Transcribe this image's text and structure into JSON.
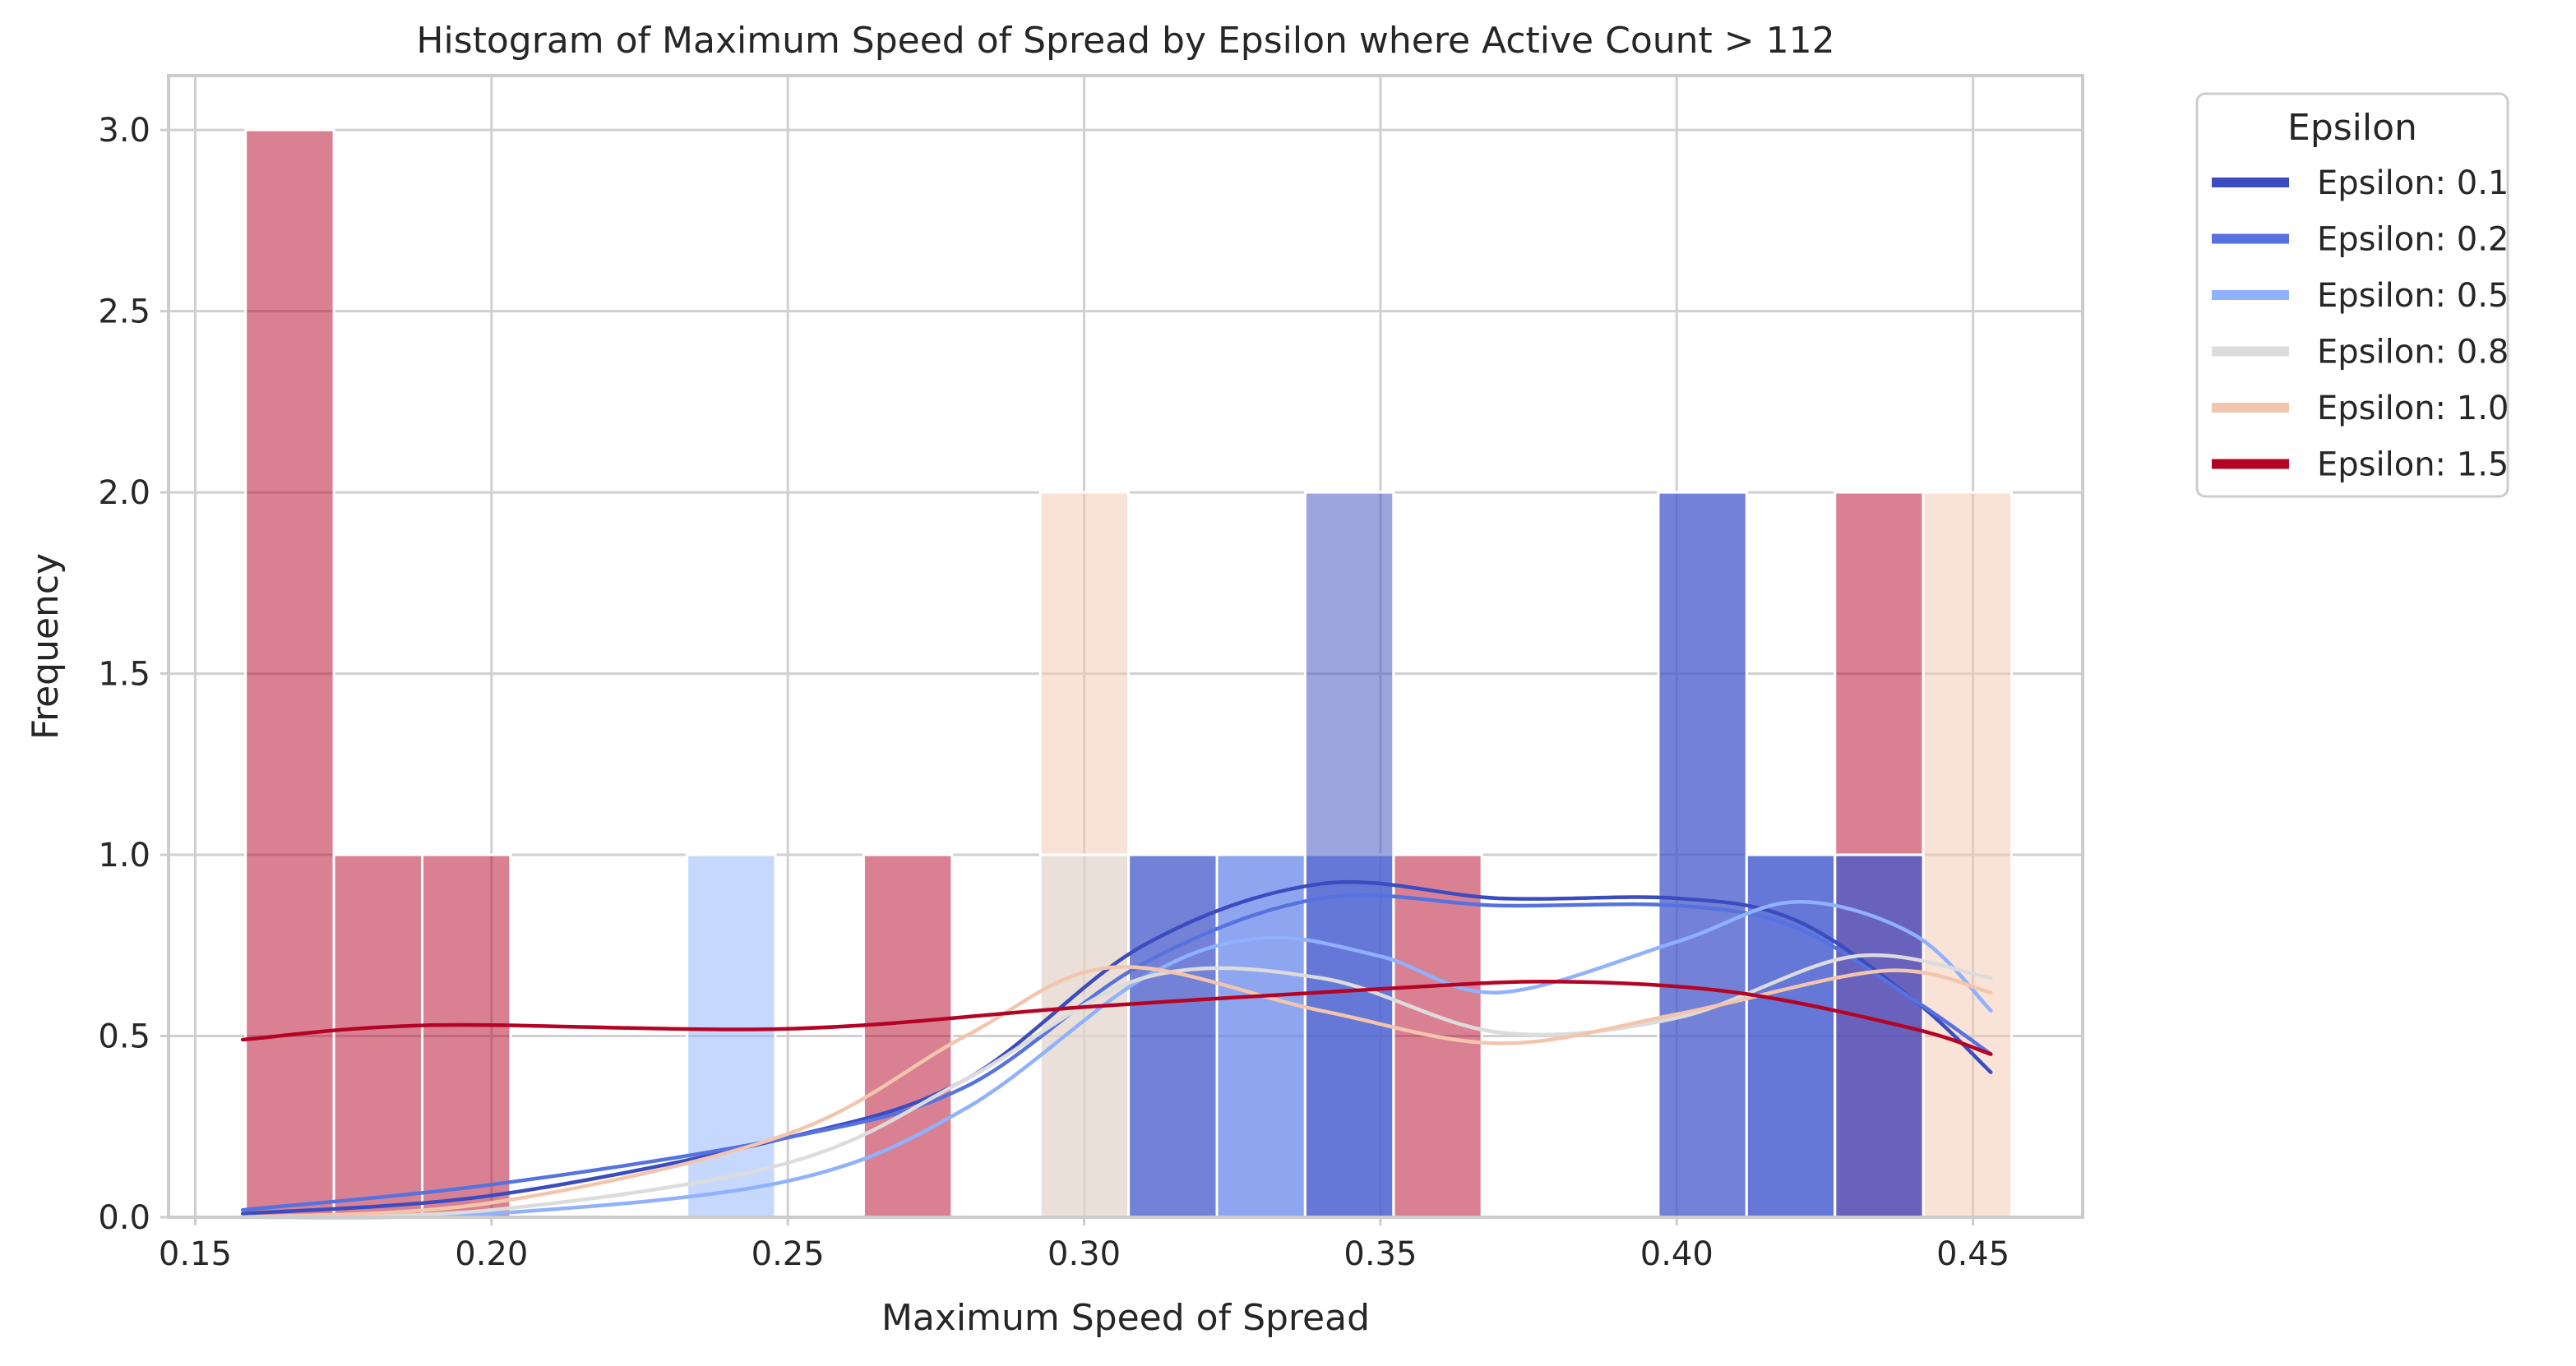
{
  "chart_data": {
    "type": "bar",
    "title": "Histogram of Maximum Speed of Spread by Epsilon where Active Count > 112",
    "xlabel": "Maximum Speed of Spread",
    "ylabel": "Frequency",
    "xlim": [
      0.1455,
      0.4685
    ],
    "ylim": [
      0,
      3.15
    ],
    "xticks": [
      0.15,
      0.2,
      0.25,
      0.3,
      0.35,
      0.4,
      0.45
    ],
    "xtick_labels": [
      "0.15",
      "0.20",
      "0.25",
      "0.30",
      "0.35",
      "0.40",
      "0.45"
    ],
    "yticks": [
      0,
      0.5,
      1,
      1.5,
      2,
      2.5,
      3
    ],
    "ytick_labels": [
      "0.0",
      "0.5",
      "1.0",
      "1.5",
      "2.0",
      "2.5",
      "3.0"
    ],
    "grid": true,
    "legend": {
      "title": "Epsilon",
      "placement": "outside upper right",
      "entries": [
        "Epsilon: 0.1",
        "Epsilon: 0.2",
        "Epsilon: 0.5",
        "Epsilon: 0.8",
        "Epsilon: 1.0",
        "Epsilon: 1.5"
      ]
    },
    "bins": [
      0.1585,
      0.1734,
      0.1883,
      0.2032,
      0.2181,
      0.233,
      0.2479,
      0.2628,
      0.2777,
      0.2926,
      0.3075,
      0.3224,
      0.3373,
      0.3522,
      0.3671,
      0.382,
      0.3969,
      0.4118,
      0.4267,
      0.4416,
      0.4565
    ],
    "series": [
      {
        "name": "Epsilon: 0.1",
        "color": "#3b4cc0",
        "counts": [
          0,
          0,
          0,
          0,
          0,
          0,
          0,
          0,
          0,
          0,
          1,
          0,
          2,
          0,
          0,
          0,
          2,
          1,
          1,
          0
        ],
        "kde_x": [
          0.158,
          0.2,
          0.25,
          0.28,
          0.31,
          0.34,
          0.37,
          0.4,
          0.42,
          0.44,
          0.453
        ],
        "kde_y": [
          0.01,
          0.06,
          0.22,
          0.38,
          0.75,
          0.92,
          0.88,
          0.88,
          0.82,
          0.6,
          0.4
        ]
      },
      {
        "name": "Epsilon: 0.2",
        "color": "#5572df",
        "counts": [
          0,
          0,
          0,
          0,
          0,
          0,
          0,
          0,
          0,
          0,
          1,
          1,
          1,
          0,
          0,
          0,
          2,
          1,
          1,
          0
        ],
        "kde_x": [
          0.158,
          0.2,
          0.25,
          0.28,
          0.31,
          0.34,
          0.37,
          0.4,
          0.42,
          0.44,
          0.453
        ],
        "kde_y": [
          0.02,
          0.09,
          0.22,
          0.36,
          0.7,
          0.88,
          0.86,
          0.86,
          0.8,
          0.6,
          0.45
        ]
      },
      {
        "name": "Epsilon: 0.5",
        "color": "#8fb1fe",
        "counts": [
          0,
          0,
          0,
          0,
          0,
          1,
          0,
          0,
          0,
          0,
          0,
          1,
          1,
          0,
          0,
          0,
          0,
          1,
          0,
          0
        ],
        "kde_x": [
          0.158,
          0.2,
          0.25,
          0.28,
          0.31,
          0.33,
          0.35,
          0.37,
          0.4,
          0.42,
          0.44,
          0.453
        ],
        "kde_y": [
          0.0,
          0.01,
          0.1,
          0.3,
          0.66,
          0.77,
          0.72,
          0.62,
          0.76,
          0.87,
          0.78,
          0.57
        ]
      },
      {
        "name": "Epsilon: 0.8",
        "color": "#dddcdc",
        "counts": [
          0,
          0,
          0,
          0,
          0,
          0,
          0,
          0,
          0,
          1,
          0,
          0,
          0,
          0,
          0,
          0,
          0,
          0,
          0,
          0
        ],
        "kde_x": [
          0.158,
          0.2,
          0.25,
          0.28,
          0.31,
          0.34,
          0.37,
          0.4,
          0.43,
          0.453
        ],
        "kde_y": [
          0.0,
          0.02,
          0.15,
          0.38,
          0.66,
          0.66,
          0.51,
          0.55,
          0.72,
          0.66
        ]
      },
      {
        "name": "Epsilon: 1.0",
        "color": "#f4c5ad",
        "counts": [
          0,
          0,
          0,
          0,
          0,
          0,
          0,
          0,
          0,
          2,
          0,
          0,
          0,
          0,
          0,
          0,
          0,
          0,
          0,
          2
        ],
        "kde_x": [
          0.158,
          0.2,
          0.25,
          0.28,
          0.305,
          0.34,
          0.37,
          0.4,
          0.435,
          0.453
        ],
        "kde_y": [
          0.0,
          0.04,
          0.23,
          0.5,
          0.69,
          0.57,
          0.48,
          0.56,
          0.68,
          0.62
        ]
      },
      {
        "name": "Epsilon: 1.5",
        "color": "#b40426",
        "counts": [
          3,
          1,
          1,
          0,
          0,
          0,
          0,
          1,
          0,
          0,
          0,
          0,
          0,
          1,
          0,
          0,
          0,
          0,
          2,
          0
        ],
        "kde_x": [
          0.158,
          0.19,
          0.25,
          0.3,
          0.35,
          0.38,
          0.41,
          0.44,
          0.453
        ],
        "kde_y": [
          0.49,
          0.53,
          0.52,
          0.58,
          0.63,
          0.65,
          0.62,
          0.52,
          0.45
        ]
      }
    ]
  }
}
